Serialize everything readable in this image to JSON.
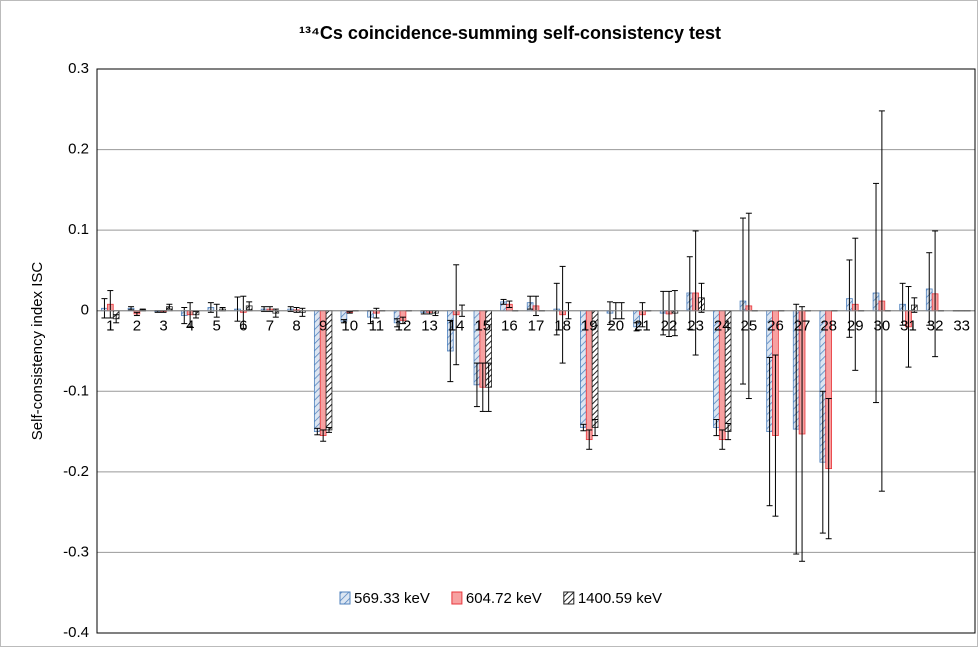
{
  "chart_data": {
    "type": "bar",
    "title": "¹³⁴Cs coincidence-summing self-consistency test",
    "ylabel": "Self-consistency index ISC",
    "categories": [
      "1",
      "2",
      "3",
      "4",
      "5",
      "6",
      "7",
      "8",
      "9",
      "10",
      "11",
      "12",
      "13",
      "14",
      "15",
      "16",
      "17",
      "18",
      "19",
      "20",
      "21",
      "22",
      "23",
      "24",
      "25",
      "26",
      "27",
      "28",
      "29",
      "30",
      "31",
      "32",
      "33"
    ],
    "ylim": [
      -0.4,
      0.3
    ],
    "yticks": [
      -0.4,
      -0.3,
      -0.2,
      -0.1,
      0,
      0.1,
      0.2,
      0.3
    ],
    "grid": true,
    "legend": "bottom",
    "series": [
      {
        "name": "569.33 keV",
        "color": "#4f81bd",
        "hatch": "light",
        "values": [
          0.003,
          0.003,
          -0.001,
          -0.006,
          0.004,
          0.002,
          0.002,
          0.002,
          -0.15,
          -0.013,
          -0.008,
          -0.015,
          -0.002,
          -0.05,
          -0.092,
          0.011,
          0.01,
          0.002,
          -0.145,
          -0.003,
          -0.02,
          -0.003,
          0.022,
          -0.145,
          0.012,
          -0.15,
          -0.147,
          -0.188,
          0.015,
          0.022,
          0.008,
          0.027,
          0
        ],
        "errors": [
          0.012,
          0.002,
          0.001,
          0.01,
          0.006,
          0.015,
          0.003,
          0.003,
          0.004,
          0.002,
          0.008,
          0.005,
          0.002,
          0.038,
          0.027,
          0.003,
          0.008,
          0.032,
          0.004,
          0.014,
          0.005,
          0.027,
          0.045,
          0.01,
          0.103,
          0.092,
          0.155,
          0.088,
          0.048,
          0.136,
          0.026,
          0.045,
          0
        ]
      },
      {
        "name": "604.72 keV",
        "color": "#e8383d",
        "hatch": "none",
        "values": [
          0.008,
          -0.004,
          -0.001,
          -0.005,
          0,
          -0.002,
          0.002,
          0.001,
          -0.155,
          -0.002,
          -0.003,
          -0.012,
          -0.002,
          -0.005,
          -0.095,
          0.008,
          0.006,
          -0.005,
          -0.16,
          0,
          -0.005,
          -0.004,
          0.022,
          -0.16,
          0.006,
          -0.155,
          -0.153,
          -0.196,
          0.008,
          0.012,
          -0.02,
          0.021,
          0
        ],
        "errors": [
          0.017,
          0.002,
          0.001,
          0.015,
          0.008,
          0.02,
          0.003,
          0.003,
          0.007,
          0.001,
          0.006,
          0.004,
          0.002,
          0.062,
          0.03,
          0.004,
          0.012,
          0.06,
          0.012,
          0.01,
          0.015,
          0.028,
          0.077,
          0.012,
          0.115,
          0.1,
          0.158,
          0.087,
          0.082,
          0.236,
          0.05,
          0.078,
          0
        ]
      },
      {
        "name": "1400.59 keV",
        "color": "#222222",
        "hatch": "dark",
        "values": [
          -0.01,
          0.001,
          0.005,
          -0.005,
          0.002,
          0.006,
          -0.003,
          -0.002,
          -0.148,
          0,
          0,
          0,
          -0.003,
          0,
          -0.095,
          0,
          0,
          0,
          -0.145,
          0,
          0,
          -0.003,
          0.016,
          -0.15,
          0,
          0,
          0,
          0,
          0,
          0,
          0.007,
          0,
          0
        ],
        "errors": [
          0.005,
          0.001,
          0.003,
          0.004,
          0.002,
          0.005,
          0.005,
          0.005,
          0.003,
          0,
          0,
          0,
          0.003,
          0.007,
          0.03,
          0,
          0,
          0.01,
          0.01,
          0.01,
          0,
          0.028,
          0.018,
          0.01,
          0,
          0,
          0,
          0,
          0,
          0,
          0.009,
          0,
          0
        ]
      }
    ]
  }
}
